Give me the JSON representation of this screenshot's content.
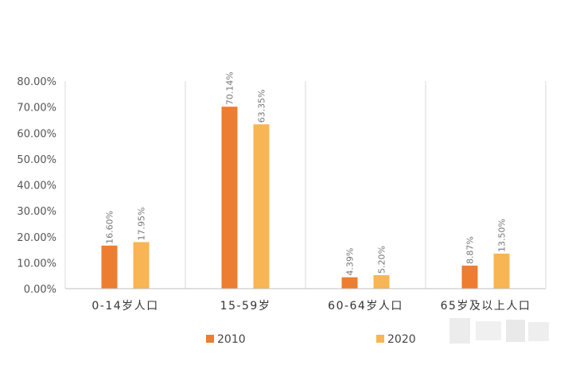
{
  "chart_data": {
    "type": "bar",
    "categories": [
      "0-14岁人口",
      "15-59岁",
      "60-64岁人口",
      "65岁及以上人口"
    ],
    "series": [
      {
        "name": "2010",
        "values": [
          16.6,
          70.14,
          4.39,
          8.87
        ],
        "labels": [
          "16.60%",
          "70.14%",
          "4.39%",
          "8.87%"
        ],
        "color": "#ED7D31"
      },
      {
        "name": "2020",
        "values": [
          17.95,
          63.35,
          5.2,
          13.5
        ],
        "labels": [
          "17.95%",
          "63.35%",
          "5.20%",
          "13.50%"
        ],
        "color": "#F8B553"
      }
    ],
    "yticks": [
      "0.00%",
      "10.00%",
      "20.00%",
      "30.00%",
      "40.00%",
      "50.00%",
      "60.00%",
      "70.00%",
      "80.00%"
    ],
    "ylim": [
      0,
      80
    ],
    "title": "",
    "xlabel": "",
    "ylabel": "",
    "grid": "vertical category separators",
    "legend": "bottom"
  }
}
